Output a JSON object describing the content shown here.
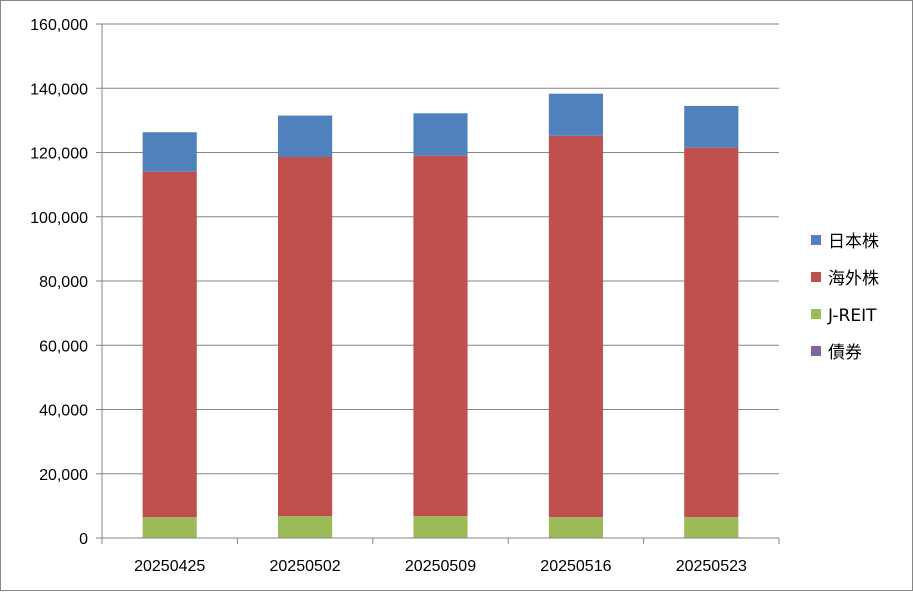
{
  "chart_data": {
    "type": "bar",
    "stacked": true,
    "categories": [
      "20250425",
      "20250502",
      "20250509",
      "20250516",
      "20250523"
    ],
    "series": [
      {
        "name": "債券",
        "color": "#8064a2",
        "values": [
          0,
          0,
          0,
          0,
          0
        ]
      },
      {
        "name": "J-REIT",
        "color": "#9bbb59",
        "values": [
          6500,
          6800,
          6800,
          6500,
          6500
        ]
      },
      {
        "name": "海外株",
        "color": "#c0504d",
        "values": [
          107500,
          111800,
          112200,
          118700,
          115000
        ]
      },
      {
        "name": "日本株",
        "color": "#4f81bd",
        "values": [
          12300,
          12900,
          13200,
          13100,
          13000
        ]
      }
    ],
    "legend_order": [
      "日本株",
      "海外株",
      "J-REIT",
      "債券"
    ],
    "ylim": [
      0,
      160000
    ],
    "y_ticks": [
      "0",
      "20,000",
      "40,000",
      "60,000",
      "80,000",
      "100,000",
      "120,000",
      "140,000",
      "160,000"
    ],
    "grid": true,
    "legend_position": "right"
  }
}
